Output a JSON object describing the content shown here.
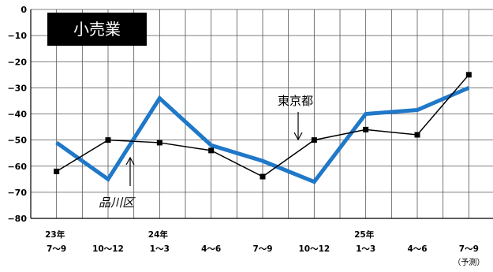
{
  "chart_data": {
    "type": "line",
    "title": "小売業",
    "x_labels": [
      {
        "year": "23年",
        "period": "7～9",
        "note": ""
      },
      {
        "year": "",
        "period": "10～12",
        "note": ""
      },
      {
        "year": "24年",
        "period": "1～3",
        "note": ""
      },
      {
        "year": "",
        "period": "4～6",
        "note": ""
      },
      {
        "year": "",
        "period": "7～9",
        "note": ""
      },
      {
        "year": "",
        "period": "10～12",
        "note": ""
      },
      {
        "year": "25年",
        "period": "1～3",
        "note": ""
      },
      {
        "year": "",
        "period": "4～6",
        "note": ""
      },
      {
        "year": "",
        "period": "7～9",
        "note": "（予測）"
      }
    ],
    "y_ticks": [
      0,
      -10,
      -20,
      -30,
      -40,
      -50,
      -60,
      -70,
      -80
    ],
    "ylim": [
      -80,
      0
    ],
    "grid": true,
    "series": [
      {
        "name": "東京都",
        "color": "#000000",
        "marker": "square",
        "values": [
          -62,
          -50,
          -51,
          -54,
          -64,
          -50,
          -46,
          -48,
          -25
        ]
      },
      {
        "name": "品川区",
        "color": "#1f78c8",
        "marker": "none",
        "values": [
          -51,
          -65,
          -34,
          -52,
          -58,
          -66,
          -40,
          -38.5,
          -30
        ]
      }
    ]
  }
}
